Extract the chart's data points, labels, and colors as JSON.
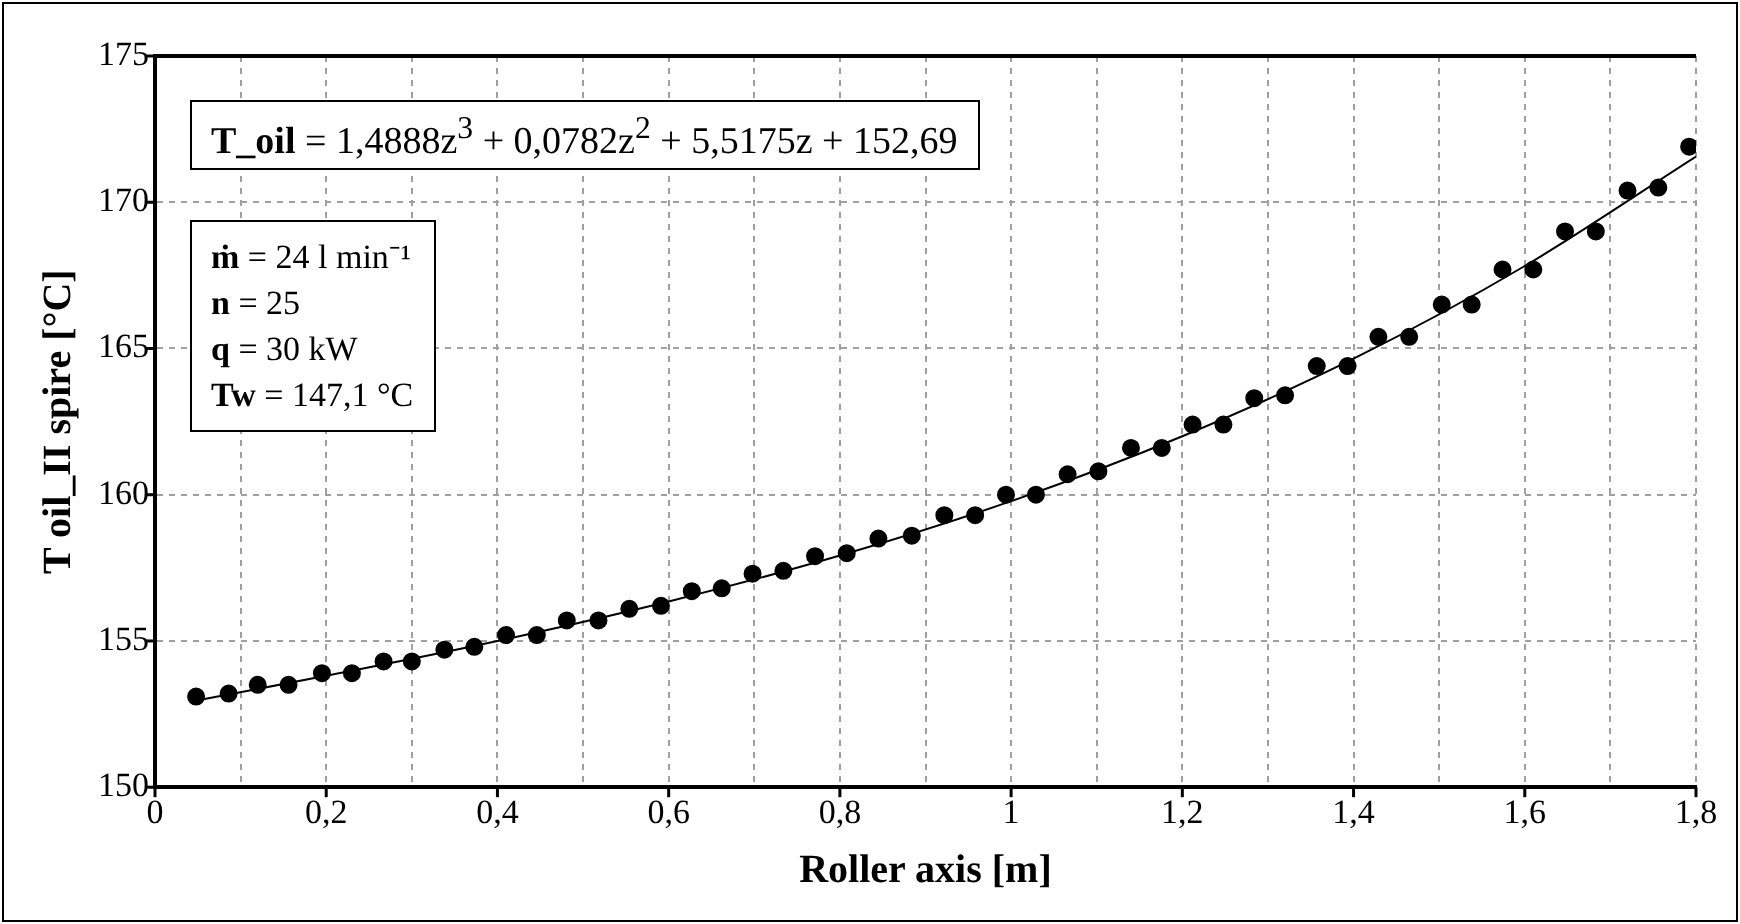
{
  "chart_data": {
    "type": "scatter",
    "xlabel": "Roller axis [m]",
    "ylabel": "T oil_II spire [°C]",
    "xlim": [
      0,
      1.8
    ],
    "xticks": [
      0,
      {
        "value": 0.1,
        "label": null
      },
      {
        "value": 0.2,
        "label": "0,2"
      },
      {
        "value": 0.3,
        "label": null
      },
      {
        "value": 0.4,
        "label": "0,4"
      },
      {
        "value": 0.5,
        "label": null
      },
      {
        "value": 0.6,
        "label": "0,6"
      },
      {
        "value": 0.7,
        "label": null
      },
      {
        "value": 0.8,
        "label": "0,8"
      },
      {
        "value": 0.9,
        "label": null
      },
      1,
      {
        "value": 1.1,
        "label": null
      },
      {
        "value": 1.2,
        "label": "1,2"
      },
      {
        "value": 1.3,
        "label": null
      },
      {
        "value": 1.4,
        "label": "1,4"
      },
      {
        "value": 1.5,
        "label": null
      },
      {
        "value": 1.6,
        "label": "1,6"
      },
      {
        "value": 1.7,
        "label": null
      },
      {
        "value": 1.8,
        "label": "1,8"
      }
    ],
    "ylim": [
      150,
      175
    ],
    "yticks": [
      150,
      155,
      160,
      165,
      170,
      175
    ],
    "grid": true,
    "marker": "circle",
    "series": [
      {
        "color": "#000000",
        "x": [
          0.048,
          0.086,
          0.12,
          0.156,
          0.195,
          0.23,
          0.267,
          0.3,
          0.338,
          0.373,
          0.41,
          0.446,
          0.481,
          0.518,
          0.554,
          0.591,
          0.627,
          0.662,
          0.698,
          0.734,
          0.771,
          0.808,
          0.845,
          0.884,
          0.922,
          0.958,
          0.994,
          1.029,
          1.066,
          1.102,
          1.14,
          1.176,
          1.212,
          1.248,
          1.284,
          1.32,
          1.357,
          1.393,
          1.429,
          1.465,
          1.503,
          1.538,
          1.574,
          1.61,
          1.647,
          1.683,
          1.72,
          1.756,
          1.792
        ],
        "values": [
          153.1,
          153.2,
          153.5,
          153.5,
          153.9,
          153.9,
          154.3,
          154.3,
          154.7,
          154.8,
          155.2,
          155.2,
          155.7,
          155.7,
          156.1,
          156.2,
          156.7,
          156.8,
          157.3,
          157.4,
          157.9,
          158.0,
          158.5,
          158.6,
          159.3,
          159.3,
          160.0,
          160.0,
          160.7,
          160.8,
          161.6,
          161.6,
          162.4,
          162.4,
          163.3,
          163.4,
          164.4,
          164.4,
          165.4,
          165.4,
          166.5,
          166.5,
          167.7,
          167.7,
          169.0,
          169.0,
          170.4,
          170.5,
          171.9
        ]
      },
      {
        "type": "line",
        "color": "#000000",
        "marker": "none",
        "x": [
          0.05,
          0.2,
          0.4,
          0.6,
          0.8,
          1.0,
          1.2,
          1.4,
          1.6,
          1.8
        ],
        "values": [
          152.97,
          153.81,
          155.0,
          156.35,
          157.92,
          159.78,
          162.0,
          164.65,
          167.82,
          171.56
        ]
      }
    ],
    "annotations": [
      "T_oil = 1,4888z$^{3}$ + 0,0782z$^{2}$ + 5,5175z + 152,69",
      "ṁ = 24 l min⁻¹",
      "n = 25",
      "q = 30 kW",
      "Tw = 147,1 °C"
    ]
  }
}
